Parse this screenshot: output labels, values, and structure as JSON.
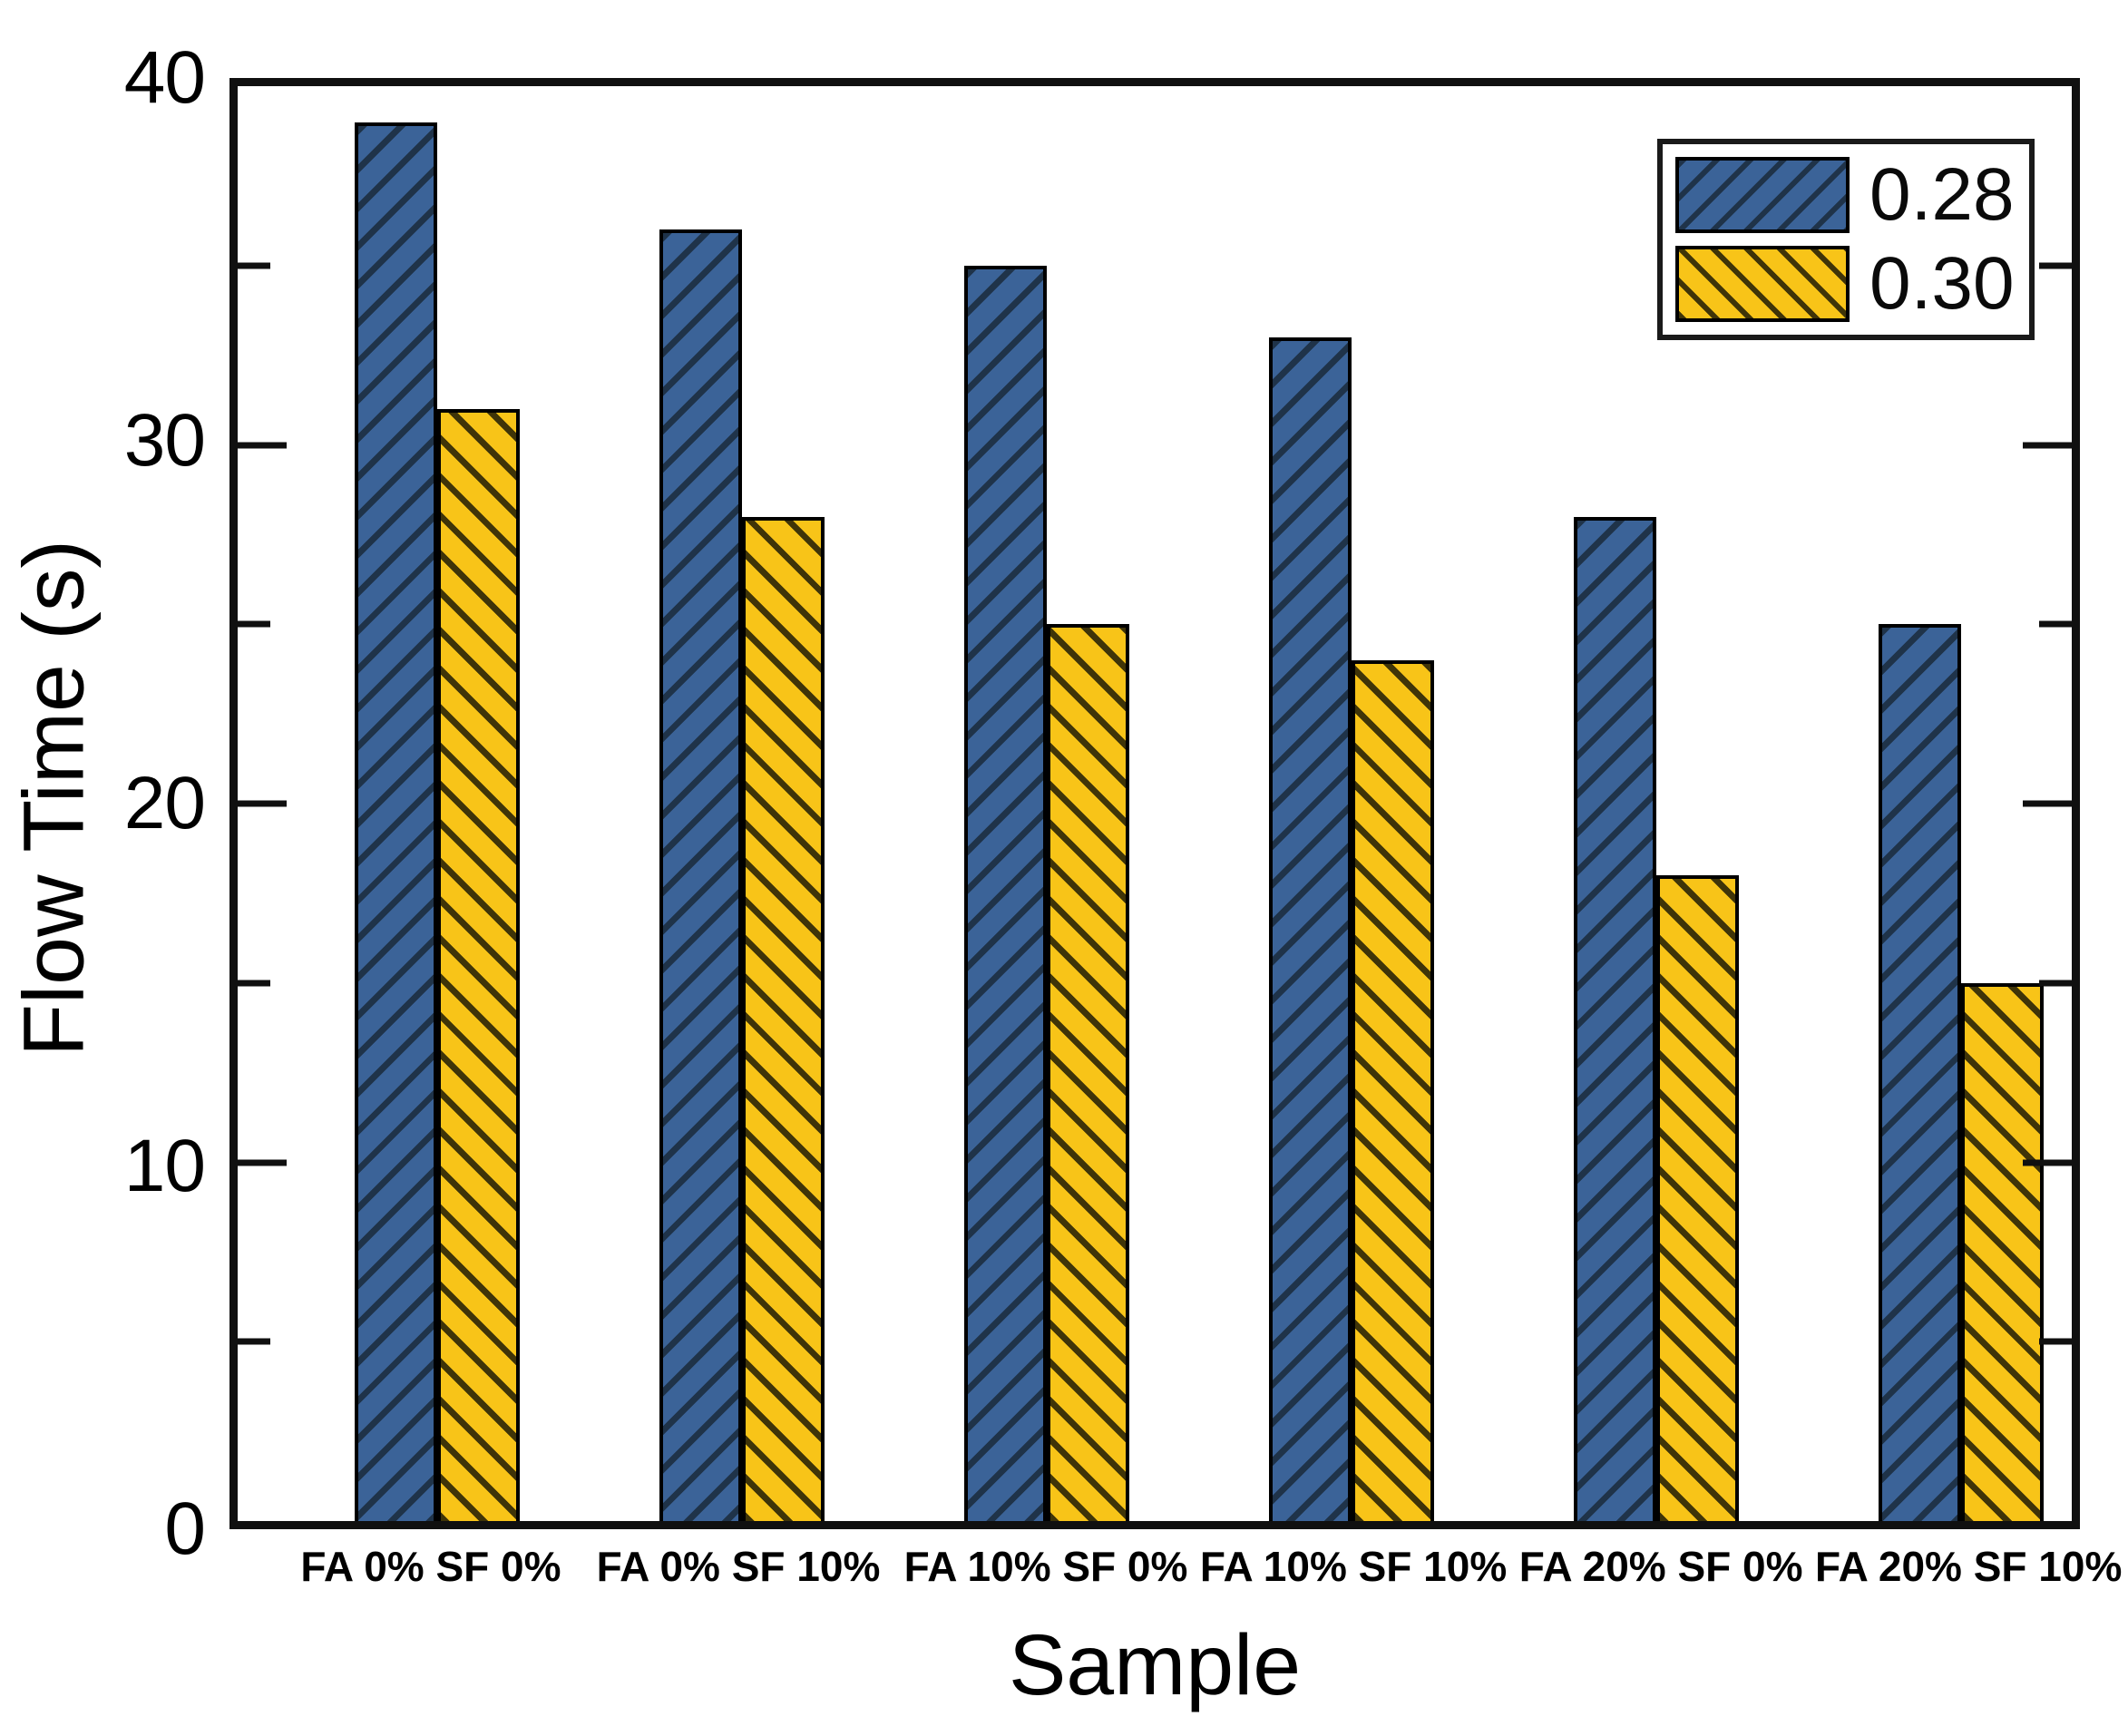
{
  "chart_data": {
    "type": "bar",
    "title": "",
    "xlabel": "Sample",
    "ylabel": "Flow Time (s)",
    "ylim": [
      0,
      40
    ],
    "yticks_major": [
      0,
      10,
      20,
      30,
      40
    ],
    "yticks_minor": [
      5,
      15,
      25,
      35
    ],
    "grid": false,
    "legend_position": "top-right",
    "categories": [
      "FA 0% SF 0%",
      "FA 0% SF 10%",
      "FA 10% SF 0%",
      "FA 10% SF 10%",
      "FA 20% SF 0%",
      "FA 20% SF 10%"
    ],
    "series": [
      {
        "name": "0.28",
        "fill": "#3b6398",
        "hatch": "/",
        "hatch_line": "#1f3349",
        "values": [
          39,
          36,
          35,
          33,
          28,
          25
        ]
      },
      {
        "name": "0.30",
        "fill": "#f8c418",
        "hatch": "\\",
        "hatch_line": "#3f3408",
        "values": [
          31,
          28,
          25,
          24,
          18,
          15
        ]
      }
    ]
  },
  "layout_hints": {
    "axis_color": "#101010"
  }
}
